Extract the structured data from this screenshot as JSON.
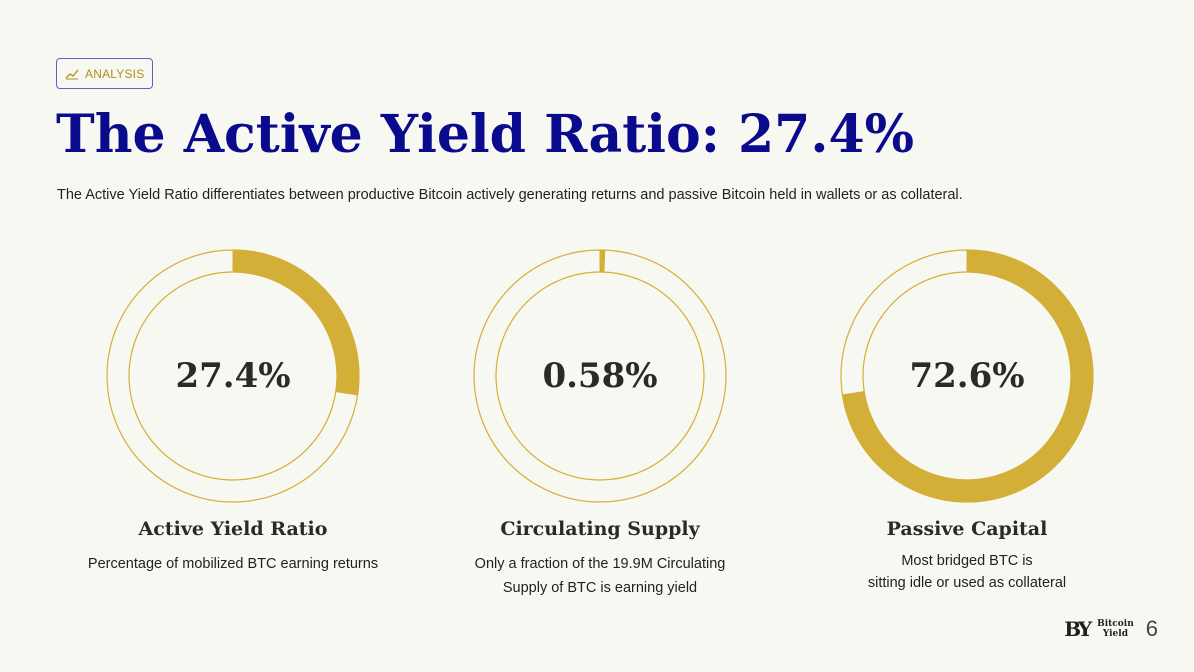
{
  "badge": {
    "icon": "trend-line-icon",
    "label": "ANALYSIS"
  },
  "title": "The Active Yield Ratio: 27.4%",
  "subtitle": "The Active Yield Ratio differentiates between productive Bitcoin actively generating returns and passive Bitcoin held in wallets or as collateral.",
  "colors": {
    "accent": "#d4af37",
    "title": "#0a0a8c",
    "badge_border": "#6a5cc7",
    "background": "#f8f8f3"
  },
  "cards": [
    {
      "value_text": "27.4%",
      "fraction": 0.274,
      "label": "Active Yield Ratio",
      "description_lines": [
        "Percentage of mobilized BTC earning returns"
      ]
    },
    {
      "value_text": "0.58%",
      "fraction": 0.0058,
      "label": "Circulating Supply",
      "description_lines": [
        "Only a fraction of the 19.9M Circulating",
        "Supply of BTC is earning yield"
      ]
    },
    {
      "value_text": "72.6%",
      "fraction": 0.726,
      "label": "Passive Capital",
      "description_lines": [
        "Most bridged BTC is",
        "sitting idle or used as collateral"
      ]
    }
  ],
  "footer": {
    "logo_mark": "BY",
    "logo_line1": "Bitcoin",
    "logo_line2": "Yield",
    "page_number": "6"
  }
}
